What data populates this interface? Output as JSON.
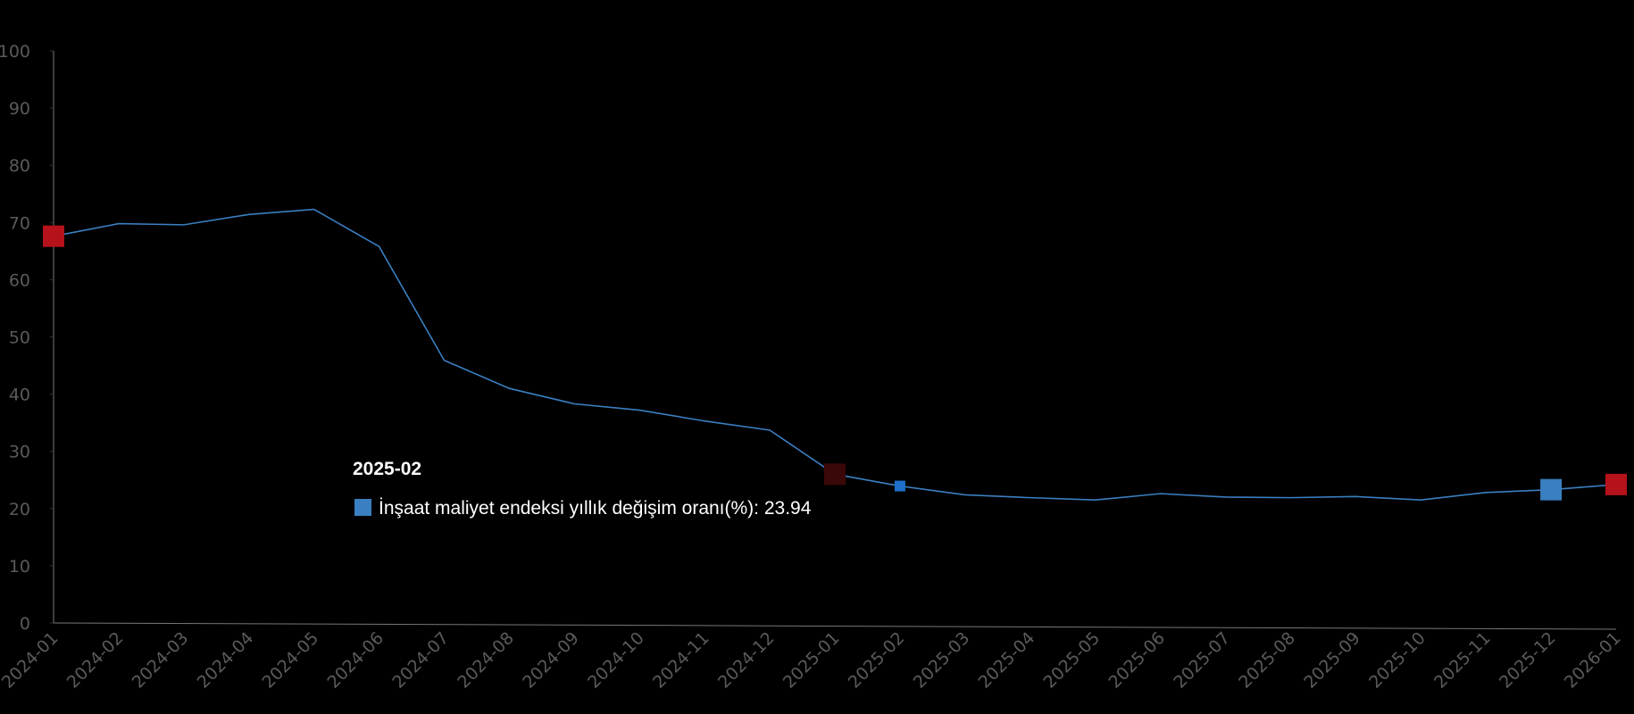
{
  "chart_data": {
    "type": "line",
    "x": [
      "2024-01",
      "2024-02",
      "2024-03",
      "2024-04",
      "2024-05",
      "2024-06",
      "2024-07",
      "2024-08",
      "2024-09",
      "2024-10",
      "2024-11",
      "2024-12",
      "2025-01",
      "2025-02",
      "2025-03",
      "2025-04",
      "2025-05",
      "2025-06",
      "2025-07",
      "2025-08",
      "2025-09",
      "2025-10",
      "2025-11",
      "2025-12",
      "2026-01"
    ],
    "series": [
      {
        "name": "İnşaat maliyet endeksi yıllık değişim oranı(%)",
        "color": "#3a7fc1",
        "values": [
          67.6,
          69.8,
          69.6,
          71.4,
          72.3,
          65.8,
          45.9,
          41.0,
          38.3,
          37.2,
          35.3,
          33.7,
          26.0,
          23.94,
          22.4,
          21.9,
          21.5,
          22.6,
          22.0,
          21.9,
          22.1,
          21.5,
          22.8,
          23.3,
          24.2
        ]
      }
    ],
    "ylim": [
      0,
      100
    ],
    "yticks": [
      0,
      10,
      20,
      30,
      40,
      50,
      60,
      70,
      80,
      90,
      100
    ],
    "highlight_points": [
      {
        "x": "2024-01",
        "color": "#b5121b"
      },
      {
        "x": "2025-01",
        "color": "#3a0808"
      },
      {
        "x": "2025-12",
        "color": "#3a7fc1"
      },
      {
        "x": "2026-01",
        "color": "#b5121b"
      }
    ],
    "tooltip": {
      "x": "2025-02",
      "series": "İnşaat maliyet endeksi yıllık değişim oranı(%)",
      "value": 23.94
    }
  }
}
